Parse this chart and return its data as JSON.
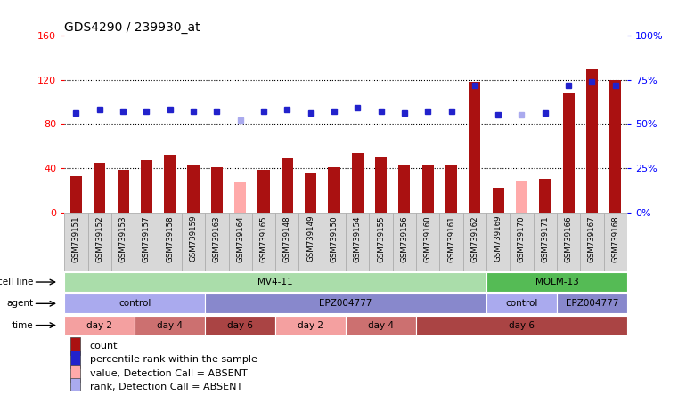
{
  "title": "GDS4290 / 239930_at",
  "samples": [
    "GSM739151",
    "GSM739152",
    "GSM739153",
    "GSM739157",
    "GSM739158",
    "GSM739159",
    "GSM739163",
    "GSM739164",
    "GSM739165",
    "GSM739148",
    "GSM739149",
    "GSM739150",
    "GSM739154",
    "GSM739155",
    "GSM739156",
    "GSM739160",
    "GSM739161",
    "GSM739162",
    "GSM739169",
    "GSM739170",
    "GSM739171",
    "GSM739166",
    "GSM739167",
    "GSM739168"
  ],
  "count_values": [
    33,
    45,
    38,
    47,
    52,
    43,
    41,
    27,
    38,
    49,
    36,
    41,
    54,
    50,
    43,
    43,
    43,
    118,
    22,
    28,
    30,
    108,
    130,
    120
  ],
  "rank_values": [
    56,
    58,
    57,
    57,
    58,
    57,
    57,
    52,
    57,
    58,
    56,
    57,
    59,
    57,
    56,
    57,
    57,
    72,
    55,
    55,
    56,
    72,
    74,
    72
  ],
  "absent_indices": [
    7,
    19
  ],
  "left_ylim": [
    0,
    160
  ],
  "right_ylim": [
    0,
    100
  ],
  "left_yticks": [
    0,
    40,
    80,
    120,
    160
  ],
  "right_yticks": [
    0,
    25,
    50,
    75,
    100
  ],
  "right_yticklabels": [
    "0%",
    "25%",
    "50%",
    "75%",
    "100%"
  ],
  "bar_color": "#AA1111",
  "absent_bar_color": "#FFAAAA",
  "dot_color": "#2222CC",
  "absent_dot_color": "#AAAAEE",
  "plot_bg": "#FFFFFF",
  "xtick_bg": "#D8D8D8",
  "cell_line_row": {
    "label": "cell line",
    "segments": [
      {
        "text": "MV4-11",
        "start": 0,
        "end": 18,
        "color": "#AADDAA"
      },
      {
        "text": "MOLM-13",
        "start": 18,
        "end": 24,
        "color": "#55BB55"
      }
    ]
  },
  "agent_row": {
    "label": "agent",
    "segments": [
      {
        "text": "control",
        "start": 0,
        "end": 6,
        "color": "#AAAAEE"
      },
      {
        "text": "EPZ004777",
        "start": 6,
        "end": 18,
        "color": "#8888CC"
      },
      {
        "text": "control",
        "start": 18,
        "end": 21,
        "color": "#AAAAEE"
      },
      {
        "text": "EPZ004777",
        "start": 21,
        "end": 24,
        "color": "#8888CC"
      }
    ]
  },
  "time_row": {
    "label": "time",
    "segments": [
      {
        "text": "day 2",
        "start": 0,
        "end": 3,
        "color": "#F4A0A0"
      },
      {
        "text": "day 4",
        "start": 3,
        "end": 6,
        "color": "#CC7070"
      },
      {
        "text": "day 6",
        "start": 6,
        "end": 9,
        "color": "#AA4444"
      },
      {
        "text": "day 2",
        "start": 9,
        "end": 12,
        "color": "#F4A0A0"
      },
      {
        "text": "day 4",
        "start": 12,
        "end": 15,
        "color": "#CC7070"
      },
      {
        "text": "day 6",
        "start": 15,
        "end": 24,
        "color": "#AA4444"
      }
    ]
  },
  "legend": [
    {
      "color": "#AA1111",
      "label": "count"
    },
    {
      "color": "#2222CC",
      "label": "percentile rank within the sample"
    },
    {
      "color": "#FFAAAA",
      "label": "value, Detection Call = ABSENT"
    },
    {
      "color": "#AAAAEE",
      "label": "rank, Detection Call = ABSENT"
    }
  ]
}
